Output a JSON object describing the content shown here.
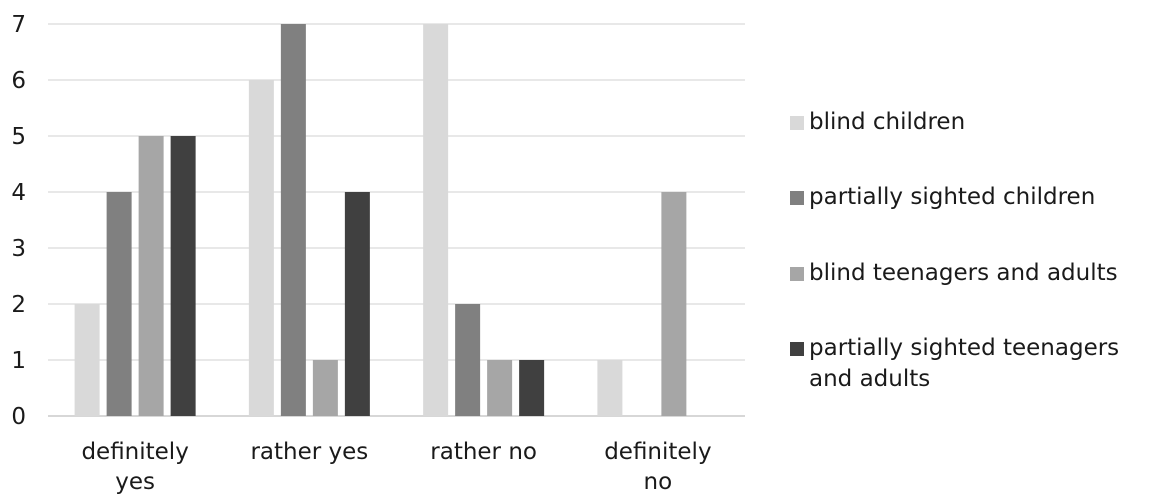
{
  "chart_data": {
    "type": "bar",
    "categories": [
      "definitely yes",
      "rather yes",
      "rather no",
      "definitely no"
    ],
    "series": [
      {
        "name": "blind children",
        "values": [
          2,
          6,
          7,
          1
        ],
        "color": "#d9d9d9"
      },
      {
        "name": "partially sighted children",
        "values": [
          4,
          7,
          2,
          0
        ],
        "color": "#808080"
      },
      {
        "name": "blind teenagers and adults",
        "values": [
          5,
          1,
          1,
          4
        ],
        "color": "#a6a6a6"
      },
      {
        "name": "partially sighted teenagers and adults",
        "values": [
          5,
          4,
          1,
          0
        ],
        "color": "#404040"
      }
    ],
    "ylim": [
      0,
      7
    ],
    "yticks": [
      0,
      1,
      2,
      3,
      4,
      5,
      6,
      7
    ],
    "title": "",
    "xlabel": "",
    "ylabel": "",
    "grid": true,
    "legend_position": "right"
  }
}
